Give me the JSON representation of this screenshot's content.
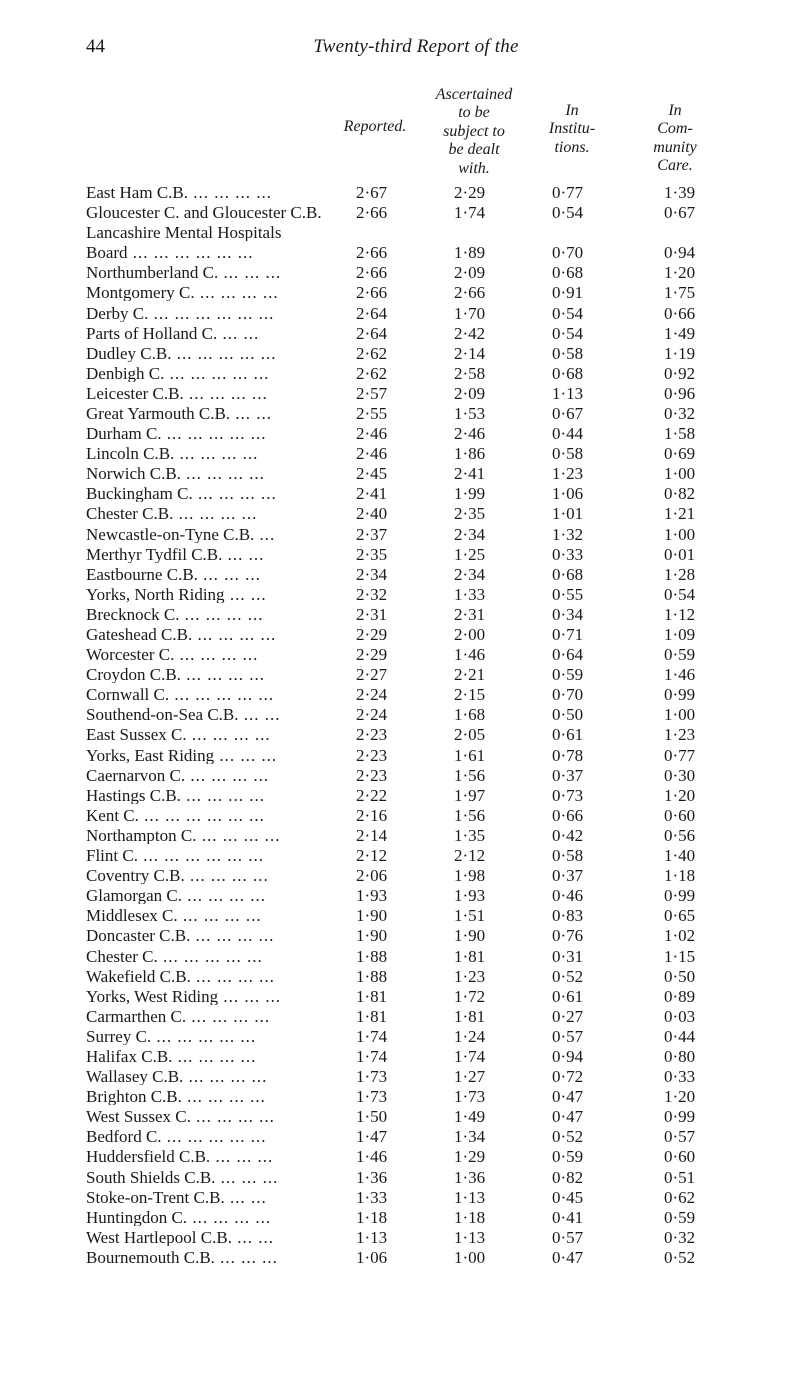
{
  "page_number": "44",
  "running_title": "Twenty-third Report of the",
  "column_headers": {
    "reported": "Reported.",
    "ascertained": "Ascertained\nto be\nsubject to\nbe dealt\nwith.",
    "institutions": "In\nInstitu-\ntions.",
    "community": "In\nCom-\nmunity\nCare."
  },
  "section_label": "Lancashire Mental Hospitals",
  "rows": [
    {
      "name": "East Ham C.B.",
      "rep": "2·67",
      "asc": "2·29",
      "inst": "0·77",
      "comm": "1·39"
    },
    {
      "name": "Gloucester C. and Gloucester C.B.",
      "rep": "2·66",
      "asc": "1·74",
      "inst": "0·54",
      "comm": "0·67"
    },
    {
      "section": true
    },
    {
      "name": "Board",
      "rep": "2·66",
      "asc": "1·89",
      "inst": "0·70",
      "comm": "0·94"
    },
    {
      "name": "Northumberland C.",
      "rep": "2·66",
      "asc": "2·09",
      "inst": "0·68",
      "comm": "1·20"
    },
    {
      "name": "Montgomery C.",
      "rep": "2·66",
      "asc": "2·66",
      "inst": "0·91",
      "comm": "1·75"
    },
    {
      "name": "Derby C.",
      "rep": "2·64",
      "asc": "1·70",
      "inst": "0·54",
      "comm": "0·66"
    },
    {
      "name": "Parts of Holland C.",
      "rep": "2·64",
      "asc": "2·42",
      "inst": "0·54",
      "comm": "1·49"
    },
    {
      "name": "Dudley C.B.",
      "rep": "2·62",
      "asc": "2·14",
      "inst": "0·58",
      "comm": "1·19"
    },
    {
      "name": "Denbigh C.",
      "rep": "2·62",
      "asc": "2·58",
      "inst": "0·68",
      "comm": "0·92"
    },
    {
      "name": "Leicester C.B.",
      "rep": "2·57",
      "asc": "2·09",
      "inst": "1·13",
      "comm": "0·96"
    },
    {
      "name": "Great Yarmouth C.B.",
      "rep": "2·55",
      "asc": "1·53",
      "inst": "0·67",
      "comm": "0·32"
    },
    {
      "name": "Durham C.",
      "rep": "2·46",
      "asc": "2·46",
      "inst": "0·44",
      "comm": "1·58"
    },
    {
      "name": "Lincoln C.B.",
      "rep": "2·46",
      "asc": "1·86",
      "inst": "0·58",
      "comm": "0·69"
    },
    {
      "name": "Norwich C.B.",
      "rep": "2·45",
      "asc": "2·41",
      "inst": "1·23",
      "comm": "1·00"
    },
    {
      "name": "Buckingham C.",
      "rep": "2·41",
      "asc": "1·99",
      "inst": "1·06",
      "comm": "0·82"
    },
    {
      "name": "Chester C.B.",
      "rep": "2·40",
      "asc": "2·35",
      "inst": "1·01",
      "comm": "1·21"
    },
    {
      "name": "Newcastle-on-Tyne C.B.",
      "rep": "2·37",
      "asc": "2·34",
      "inst": "1·32",
      "comm": "1·00"
    },
    {
      "name": "Merthyr Tydfil C.B.",
      "rep": "2·35",
      "asc": "1·25",
      "inst": "0·33",
      "comm": "0·01"
    },
    {
      "name": "Eastbourne C.B.",
      "rep": "2·34",
      "asc": "2·34",
      "inst": "0·68",
      "comm": "1·28"
    },
    {
      "name": "Yorks, North Riding",
      "rep": "2·32",
      "asc": "1·33",
      "inst": "0·55",
      "comm": "0·54"
    },
    {
      "name": "Brecknock C.",
      "rep": "2·31",
      "asc": "2·31",
      "inst": "0·34",
      "comm": "1·12"
    },
    {
      "name": "Gateshead C.B.",
      "rep": "2·29",
      "asc": "2·00",
      "inst": "0·71",
      "comm": "1·09"
    },
    {
      "name": "Worcester C.",
      "rep": "2·29",
      "asc": "1·46",
      "inst": "0·64",
      "comm": "0·59"
    },
    {
      "name": "Croydon C.B.",
      "rep": "2·27",
      "asc": "2·21",
      "inst": "0·59",
      "comm": "1·46"
    },
    {
      "name": "Cornwall C.",
      "rep": "2·24",
      "asc": "2·15",
      "inst": "0·70",
      "comm": "0·99"
    },
    {
      "name": "Southend-on-Sea C.B.",
      "rep": "2·24",
      "asc": "1·68",
      "inst": "0·50",
      "comm": "1·00"
    },
    {
      "name": "East Sussex C.",
      "rep": "2·23",
      "asc": "2·05",
      "inst": "0·61",
      "comm": "1·23"
    },
    {
      "name": "Yorks, East Riding",
      "rep": "2·23",
      "asc": "1·61",
      "inst": "0·78",
      "comm": "0·77"
    },
    {
      "name": "Caernarvon C.",
      "rep": "2·23",
      "asc": "1·56",
      "inst": "0·37",
      "comm": "0·30"
    },
    {
      "name": "Hastings C.B.",
      "rep": "2·22",
      "asc": "1·97",
      "inst": "0·73",
      "comm": "1·20"
    },
    {
      "name": "Kent C.",
      "rep": "2·16",
      "asc": "1·56",
      "inst": "0·66",
      "comm": "0·60"
    },
    {
      "name": "Northampton C.",
      "rep": "2·14",
      "asc": "1·35",
      "inst": "0·42",
      "comm": "0·56"
    },
    {
      "name": "Flint C.",
      "rep": "2·12",
      "asc": "2·12",
      "inst": "0·58",
      "comm": "1·40"
    },
    {
      "name": "Coventry C.B.",
      "rep": "2·06",
      "asc": "1·98",
      "inst": "0·37",
      "comm": "1·18"
    },
    {
      "name": "Glamorgan C.",
      "rep": "1·93",
      "asc": "1·93",
      "inst": "0·46",
      "comm": "0·99"
    },
    {
      "name": "Middlesex C.",
      "rep": "1·90",
      "asc": "1·51",
      "inst": "0·83",
      "comm": "0·65"
    },
    {
      "name": "Doncaster C.B.",
      "rep": "1·90",
      "asc": "1·90",
      "inst": "0·76",
      "comm": "1·02"
    },
    {
      "name": "Chester C.",
      "rep": "1·88",
      "asc": "1·81",
      "inst": "0·31",
      "comm": "1·15"
    },
    {
      "name": "Wakefield C.B.",
      "rep": "1·88",
      "asc": "1·23",
      "inst": "0·52",
      "comm": "0·50"
    },
    {
      "name": "Yorks, West Riding",
      "rep": "1·81",
      "asc": "1·72",
      "inst": "0·61",
      "comm": "0·89"
    },
    {
      "name": "Carmarthen C.",
      "rep": "1·81",
      "asc": "1·81",
      "inst": "0·27",
      "comm": "0·03"
    },
    {
      "name": "Surrey C.",
      "rep": "1·74",
      "asc": "1·24",
      "inst": "0·57",
      "comm": "0·44"
    },
    {
      "name": "Halifax C.B.",
      "rep": "1·74",
      "asc": "1·74",
      "inst": "0·94",
      "comm": "0·80"
    },
    {
      "name": "Wallasey C.B.",
      "rep": "1·73",
      "asc": "1·27",
      "inst": "0·72",
      "comm": "0·33"
    },
    {
      "name": "Brighton C.B.",
      "rep": "1·73",
      "asc": "1·73",
      "inst": "0·47",
      "comm": "1·20"
    },
    {
      "name": "West Sussex C.",
      "rep": "1·50",
      "asc": "1·49",
      "inst": "0·47",
      "comm": "0·99"
    },
    {
      "name": "Bedford C.",
      "rep": "1·47",
      "asc": "1·34",
      "inst": "0·52",
      "comm": "0·57"
    },
    {
      "name": "Huddersfield C.B.",
      "rep": "1·46",
      "asc": "1·29",
      "inst": "0·59",
      "comm": "0·60"
    },
    {
      "name": "South Shields C.B.",
      "rep": "1·36",
      "asc": "1·36",
      "inst": "0·82",
      "comm": "0·51"
    },
    {
      "name": "Stoke-on-Trent C.B.",
      "rep": "1·33",
      "asc": "1·13",
      "inst": "0·45",
      "comm": "0·62"
    },
    {
      "name": "Huntingdon C.",
      "rep": "1·18",
      "asc": "1·18",
      "inst": "0·41",
      "comm": "0·59"
    },
    {
      "name": "West Hartlepool C.B.",
      "rep": "1·13",
      "asc": "1·13",
      "inst": "0·57",
      "comm": "0·32"
    },
    {
      "name": "Bournemouth C.B.",
      "rep": "1·06",
      "asc": "1·00",
      "inst": "0·47",
      "comm": "0·52"
    }
  ]
}
